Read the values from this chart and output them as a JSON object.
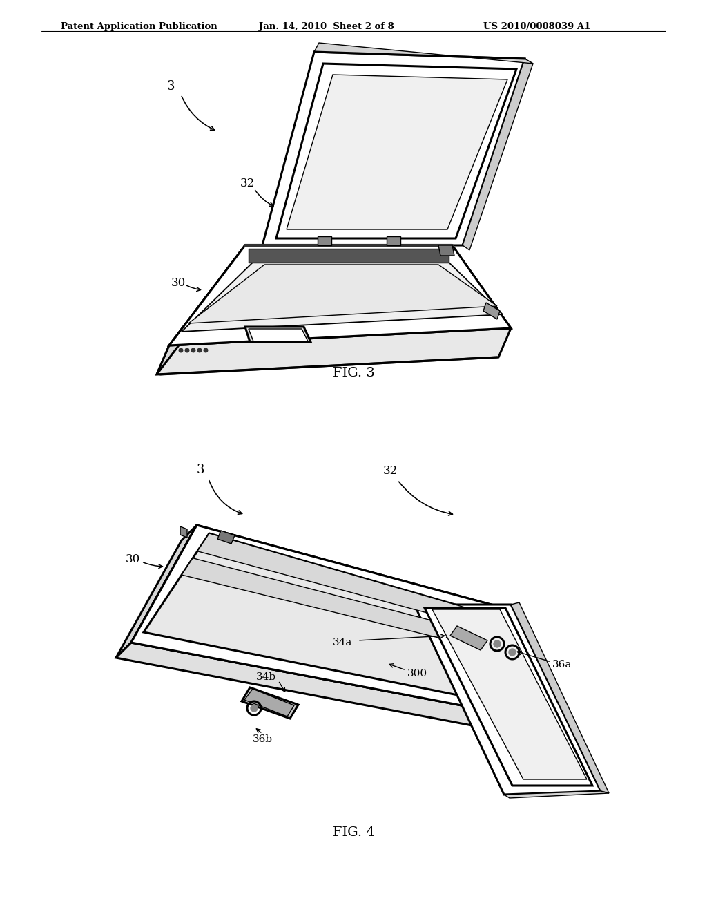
{
  "bg_color": "#ffffff",
  "header_left": "Patent Application Publication",
  "header_mid": "Jan. 14, 2010  Sheet 2 of 8",
  "header_right": "US 2010/0008039 A1",
  "fig3_label": "FIG. 3",
  "fig4_label": "FIG. 4",
  "line_color": "#000000",
  "lw_main": 2.2,
  "lw_thin": 1.0,
  "lw_thick": 3.0
}
